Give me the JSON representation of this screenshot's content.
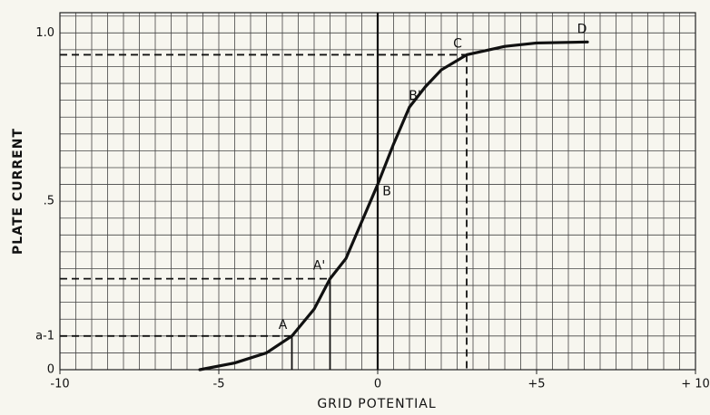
{
  "chart_data": {
    "type": "line",
    "xlabel": "GRID POTENTIAL",
    "ylabel": "PLATE CURRENT",
    "x": [
      -5.6,
      -4.5,
      -3.5,
      -2.7,
      -2,
      -1.5,
      -1,
      -0.5,
      0,
      0.5,
      1,
      1.5,
      2,
      2.8,
      4,
      5,
      6.6
    ],
    "series": [
      {
        "color": "#111111",
        "values": [
          0.0,
          0.02,
          0.05,
          0.1,
          0.18,
          0.27,
          0.33,
          0.44,
          0.55,
          0.67,
          0.78,
          0.84,
          0.89,
          0.935,
          0.96,
          0.97,
          0.973
        ]
      }
    ],
    "xlim": [
      -10,
      10
    ],
    "ylim": [
      0,
      1.06
    ],
    "xticks": [
      -10,
      -5,
      0,
      {
        "value": 5,
        "label": "+5"
      },
      {
        "value": 10,
        "label": "+ 10"
      }
    ],
    "yticks": [
      0,
      {
        "value": 0.1,
        "label": "a-1"
      },
      {
        "value": 0.5,
        "label": ".5"
      },
      {
        "value": 1.0,
        "label": "1.0"
      }
    ],
    "grid": true,
    "grid_step": [
      0.5,
      0.05
    ],
    "guides": [
      {
        "x": -2.7,
        "y": 0.1,
        "drop": "solid"
      },
      {
        "x": -1.5,
        "y": 0.27,
        "drop": "solid"
      },
      {
        "x": 2.8,
        "y": 0.935,
        "drop": "dashed"
      }
    ],
    "annotations": [
      {
        "text": "A",
        "x": -2.7,
        "y": 0.1
      },
      {
        "text": "A'",
        "x": -1.5,
        "y": 0.27
      },
      {
        "text": "B",
        "x": 0,
        "y": 0.55
      },
      {
        "text": "B'",
        "x": 1,
        "y": 0.78
      },
      {
        "text": "C",
        "x": 2.8,
        "y": 0.935
      },
      {
        "text": "D",
        "x": 6.6,
        "y": 0.973
      }
    ]
  }
}
